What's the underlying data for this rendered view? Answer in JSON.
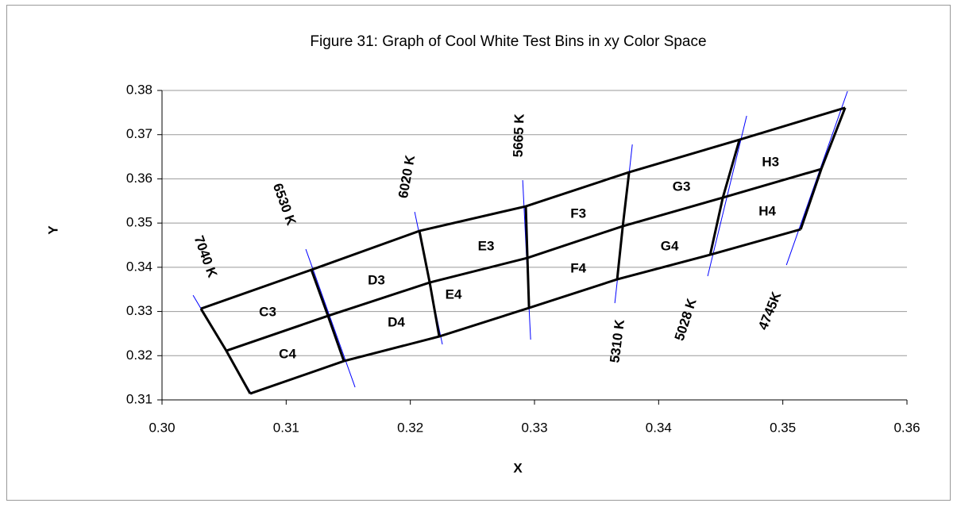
{
  "chart_data": {
    "type": "bin-grid",
    "title": "Figure 31:  Graph of Cool White Test Bins in xy Color Space",
    "x_label": "X",
    "y_label": "Y",
    "xlim": [
      0.3,
      0.36
    ],
    "ylim": [
      0.31,
      0.38
    ],
    "xticks": [
      {
        "value": 0.3,
        "label": "0.30"
      },
      0.31,
      0.32,
      0.33,
      0.34,
      0.35,
      0.36
    ],
    "yticks": [
      0.31,
      0.32,
      0.33,
      0.34,
      0.35,
      0.36,
      0.37,
      0.38
    ],
    "grid": true,
    "line_color": "#000000",
    "cct_color": "#0000ff",
    "boundaries": [
      {
        "x": [
          0.30313,
          0.31203,
          0.32073,
          0.3293,
          0.33762,
          0.34651,
          0.35502
        ],
        "y": [
          0.33063,
          0.33943,
          0.34822,
          0.35379,
          0.36151,
          0.36887,
          0.37609
        ]
      },
      {
        "x": [
          0.30518,
          0.31337,
          0.32156,
          0.32943,
          0.33711,
          0.34517,
          0.3531
        ],
        "y": [
          0.32111,
          0.32901,
          0.33655,
          0.34212,
          0.3493,
          0.35576,
          0.36223
        ]
      },
      {
        "x": [
          0.3071,
          0.31465,
          0.32233,
          0.32956,
          0.33666,
          0.34415,
          0.35144
        ],
        "y": [
          0.31142,
          0.31878,
          0.32434,
          0.33081,
          0.33727,
          0.34284,
          0.34858
        ]
      }
    ],
    "cct_lines": [
      {
        "label": "7040 K",
        "x": [
          0.3025,
          0.30723
        ],
        "y": [
          0.33368,
          0.31124
        ],
        "label_x": 0.30345,
        "label_y": 0.34234
      },
      {
        "label": "6530 K",
        "x": [
          0.31158,
          0.31555
        ],
        "y": [
          0.34409,
          0.31286
        ],
        "label_x": 0.3098,
        "label_y": 0.35418
      },
      {
        "label": "6020 K",
        "x": [
          0.32035,
          0.32258
        ],
        "y": [
          0.35253,
          0.32255
        ],
        "label_x": 0.31977,
        "label_y": 0.36047
      },
      {
        "label": "5665 K",
        "x": [
          0.32905,
          0.32969
        ],
        "y": [
          0.35971,
          0.32363
        ],
        "label_x": 0.32879,
        "label_y": 0.36981
      },
      {
        "label": "5310 K",
        "x": [
          0.33788,
          0.33647
        ],
        "y": [
          0.36779,
          0.33189
        ],
        "label_x": 0.33673,
        "label_y": 0.32326
      },
      {
        "label": "5028 K",
        "x": [
          0.34709,
          0.34395
        ],
        "y": [
          0.37425,
          0.33799
        ],
        "label_x": 0.34223,
        "label_y": 0.32811
      },
      {
        "label": "4745K",
        "x": [
          0.35521,
          0.35029
        ],
        "y": [
          0.37982,
          0.3405
        ],
        "label_x": 0.34901,
        "label_y": 0.33008
      }
    ],
    "bins": [
      {
        "label": "C3",
        "x": 0.30851,
        "y": 0.32973
      },
      {
        "label": "C4",
        "x": 0.31011,
        "y": 0.32022
      },
      {
        "label": "D3",
        "x": 0.31727,
        "y": 0.33691
      },
      {
        "label": "D4",
        "x": 0.31887,
        "y": 0.3274
      },
      {
        "label": "E3",
        "x": 0.3261,
        "y": 0.34463
      },
      {
        "label": "E4",
        "x": 0.32348,
        "y": 0.33368
      },
      {
        "label": "F3",
        "x": 0.33353,
        "y": 0.35199
      },
      {
        "label": "F4",
        "x": 0.33353,
        "y": 0.33961
      },
      {
        "label": "G3",
        "x": 0.34184,
        "y": 0.3581
      },
      {
        "label": "G4",
        "x": 0.34088,
        "y": 0.34463
      },
      {
        "label": "H3",
        "x": 0.34901,
        "y": 0.36366
      },
      {
        "label": "H4",
        "x": 0.34875,
        "y": 0.35253
      }
    ]
  }
}
